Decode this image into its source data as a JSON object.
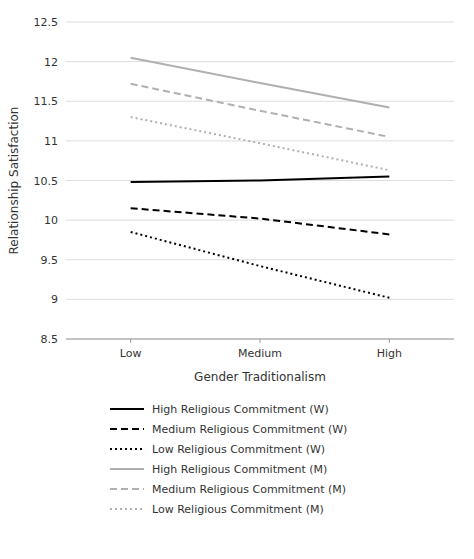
{
  "chart_data": {
    "type": "line",
    "categories": [
      "Low",
      "Medium",
      "High"
    ],
    "series": [
      {
        "name": "High Religious Commitment (W)",
        "color": "#000000",
        "line_style": "solid",
        "values": [
          10.48,
          10.5,
          10.55
        ]
      },
      {
        "name": "Medium Religious Commitment (W)",
        "color": "#000000",
        "line_style": "dashed",
        "values": [
          10.15,
          10.02,
          9.82
        ]
      },
      {
        "name": "Low Religious Commitment (W)",
        "color": "#000000",
        "line_style": "dotted",
        "values": [
          9.85,
          9.42,
          9.02
        ]
      },
      {
        "name": "High Religious Commitment (M)",
        "color": "#b0b0b0",
        "line_style": "solid",
        "values": [
          12.05,
          11.73,
          11.42
        ]
      },
      {
        "name": "Medium Religious Commitment (M)",
        "color": "#b0b0b0",
        "line_style": "dashed",
        "values": [
          11.72,
          11.38,
          11.05
        ]
      },
      {
        "name": "Low Religious Commitment (M)",
        "color": "#b0b0b0",
        "line_style": "dotted",
        "values": [
          11.3,
          10.97,
          10.63
        ]
      }
    ],
    "x_label": "Gender Traditionalism",
    "y_label": "Relationship Satisfaction",
    "ylim": [
      8.5,
      12.5
    ],
    "yticks": [
      8.5,
      9,
      9.5,
      10,
      10.5,
      11,
      11.5,
      12,
      12.5
    ],
    "grid": true,
    "legend": "bottom"
  }
}
